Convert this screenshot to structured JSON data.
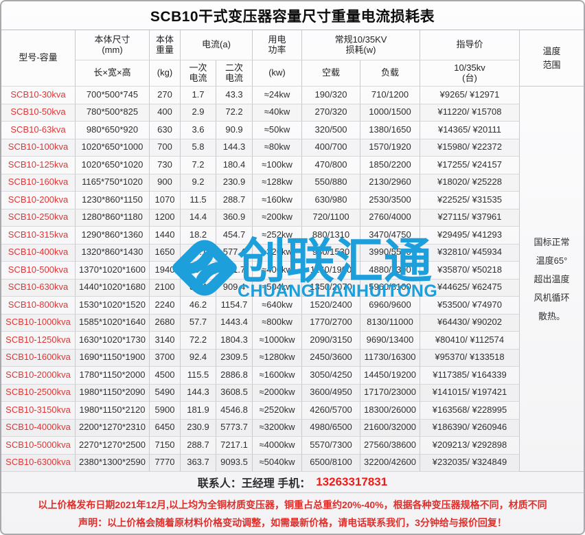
{
  "title": "SCB10干式变压器容量尺寸重量电流损耗表",
  "header": {
    "model": "型号-容量",
    "dims_group": "本体尺寸\n(mm)",
    "dims_sub": "长×宽×高",
    "weight_group": "本体\n重量",
    "weight_sub": "(kg)",
    "current_group": "电流(a)",
    "current_primary": "一次\n电流",
    "current_secondary": "二次\n电流",
    "power_group": "用电\n功率",
    "power_sub": "(kw)",
    "loss_group": "常规10/35KV\n损耗(w)",
    "loss_no_load": "空载",
    "loss_load": "负载",
    "price_group": "指导价",
    "price_sub": "10/35kv\n(台)",
    "temp_range": "温度\n范围"
  },
  "rows": [
    {
      "model": "SCB10-30kva",
      "dims": "700*500*745",
      "weight": "270",
      "i1": "1.7",
      "i2": "43.3",
      "power": "≈24kw",
      "no_load": "190/320",
      "load": "710/1200",
      "price": "¥9265/ ¥12971"
    },
    {
      "model": "SCB10-50kva",
      "dims": "780*500*825",
      "weight": "400",
      "i1": "2.9",
      "i2": "72.2",
      "power": "≈40kw",
      "no_load": "270/320",
      "load": "1000/1500",
      "price": "¥11220/ ¥15708"
    },
    {
      "model": "SCB10-63kva",
      "dims": "980*650*920",
      "weight": "630",
      "i1": "3.6",
      "i2": "90.9",
      "power": "≈50kw",
      "no_load": "320/500",
      "load": "1380/1650",
      "price": "¥14365/ ¥20111"
    },
    {
      "model": "SCB10-100kva",
      "dims": "1020*650*1000",
      "weight": "700",
      "i1": "5.8",
      "i2": "144.3",
      "power": "≈80kw",
      "no_load": "400/700",
      "load": "1570/1920",
      "price": "¥15980/ ¥22372"
    },
    {
      "model": "SCB10-125kva",
      "dims": "1020*650*1020",
      "weight": "730",
      "i1": "7.2",
      "i2": "180.4",
      "power": "≈100kw",
      "no_load": "470/800",
      "load": "1850/2200",
      "price": "¥17255/ ¥24157"
    },
    {
      "model": "SCB10-160kva",
      "dims": "1165*750*1020",
      "weight": "900",
      "i1": "9.2",
      "i2": "230.9",
      "power": "≈128kw",
      "no_load": "550/880",
      "load": "2130/2960",
      "price": "¥18020/ ¥25228"
    },
    {
      "model": "SCB10-200kva",
      "dims": "1230*860*1150",
      "weight": "1070",
      "i1": "11.5",
      "i2": "288.7",
      "power": "≈160kw",
      "no_load": "630/980",
      "load": "2530/3500",
      "price": "¥22525/ ¥31535"
    },
    {
      "model": "SCB10-250kva",
      "dims": "1280*860*1180",
      "weight": "1200",
      "i1": "14.4",
      "i2": "360.9",
      "power": "≈200kw",
      "no_load": "720/1100",
      "load": "2760/4000",
      "price": "¥27115/ ¥37961"
    },
    {
      "model": "SCB10-315kva",
      "dims": "1290*860*1360",
      "weight": "1440",
      "i1": "18.2",
      "i2": "454.7",
      "power": "≈252kw",
      "no_load": "880/1310",
      "load": "3470/4750",
      "price": "¥29495/ ¥41293"
    },
    {
      "model": "SCB10-400kva",
      "dims": "1320*860*1430",
      "weight": "1650",
      "i1": "23.1",
      "i2": "577.4",
      "power": "≈320kw",
      "no_load": "980/1530",
      "load": "3990/5530",
      "price": "¥32810/ ¥45934"
    },
    {
      "model": "SCB10-500kva",
      "dims": "1370*1020*1600",
      "weight": "1940",
      "i1": "28.9",
      "i2": "721.7",
      "power": "≈400kw",
      "no_load": "1160/1900",
      "load": "4880/7300",
      "price": "¥35870/ ¥50218"
    },
    {
      "model": "SCB10-630kva",
      "dims": "1440*1020*1680",
      "weight": "2100",
      "i1": "36.4",
      "i2": "909.4",
      "power": "≈504kw",
      "no_load": "1350/2070",
      "load": "5960/8100",
      "price": "¥44625/ ¥62475"
    },
    {
      "model": "SCB10-800kva",
      "dims": "1530*1020*1520",
      "weight": "2240",
      "i1": "46.2",
      "i2": "1154.7",
      "power": "≈640kw",
      "no_load": "1520/2400",
      "load": "6960/9600",
      "price": "¥53500/ ¥74970"
    },
    {
      "model": "SCB10-1000kva",
      "dims": "1585*1020*1640",
      "weight": "2680",
      "i1": "57.7",
      "i2": "1443.4",
      "power": "≈800kw",
      "no_load": "1770/2700",
      "load": "8130/11000",
      "price": "¥64430/ ¥90202"
    },
    {
      "model": "SCB10-1250kva",
      "dims": "1630*1020*1730",
      "weight": "3140",
      "i1": "72.2",
      "i2": "1804.3",
      "power": "≈1000kw",
      "no_load": "2090/3150",
      "load": "9690/13400",
      "price": "¥80410/ ¥112574"
    },
    {
      "model": "SCB10-1600kva",
      "dims": "1690*1150*1900",
      "weight": "3700",
      "i1": "92.4",
      "i2": "2309.5",
      "power": "≈1280kw",
      "no_load": "2450/3600",
      "load": "11730/16300",
      "price": "¥95370/ ¥133518"
    },
    {
      "model": "SCB10-2000kva",
      "dims": "1780*1150*2000",
      "weight": "4500",
      "i1": "115.5",
      "i2": "2886.8",
      "power": "≈1600kw",
      "no_load": "3050/4250",
      "load": "14450/19200",
      "price": "¥117385/ ¥164339"
    },
    {
      "model": "SCB10-2500kva",
      "dims": "1980*1150*2090",
      "weight": "5490",
      "i1": "144.3",
      "i2": "3608.5",
      "power": "≈2000kw",
      "no_load": "3600/4950",
      "load": "17170/23000",
      "price": "¥141015/ ¥197421"
    },
    {
      "model": "SCB10-3150kva",
      "dims": "1980*1150*2120",
      "weight": "5900",
      "i1": "181.9",
      "i2": "4546.8",
      "power": "≈2520kw",
      "no_load": "4260/5700",
      "load": "18300/26000",
      "price": "¥163568/ ¥228995"
    },
    {
      "model": "SCB10-4000kva",
      "dims": "2200*1270*2310",
      "weight": "6450",
      "i1": "230.9",
      "i2": "5773.7",
      "power": "≈3200kw",
      "no_load": "4980/6500",
      "load": "21600/32000",
      "price": "¥186390/ ¥260946"
    },
    {
      "model": "SCB10-5000kva",
      "dims": "2270*1270*2500",
      "weight": "7150",
      "i1": "288.7",
      "i2": "7217.1",
      "power": "≈4000kw",
      "no_load": "5570/7300",
      "load": "27560/38600",
      "price": "¥209213/ ¥292898"
    },
    {
      "model": "SCB10-6300kva",
      "dims": "2380*1300*2590",
      "weight": "7770",
      "i1": "363.7",
      "i2": "9093.5",
      "power": "≈5040kw",
      "no_load": "6500/8100",
      "load": "32200/42600",
      "price": "¥232035/ ¥324849"
    }
  ],
  "temp_note": "国标正常\n温度65°\n超出温度\n风机循环\n散热。",
  "contact": {
    "label": "联系人：王经理  手机：",
    "phone": "13263317831"
  },
  "notes": [
    "以上价格发布日期2021年12月,以上均为全铜材质变压器，铜重占总重约20%-40%，根据各种变压器规格不同，材质不同",
    "声明：以上价格会随着原材料价格变动调整，如需最新价格，请电话联系我们，3分钟给与报价回复！"
  ],
  "watermark": {
    "text": "创联汇通",
    "subtext": "CHUANGLIANHUITONG",
    "color": "#1d9fdc",
    "logo": "interlocked-diamond-knot"
  },
  "colors": {
    "model_red": "#e23434",
    "note_red": "#e02f2b",
    "phone_red": "#ee1c16",
    "watermark_blue": "#1d9fdc"
  }
}
